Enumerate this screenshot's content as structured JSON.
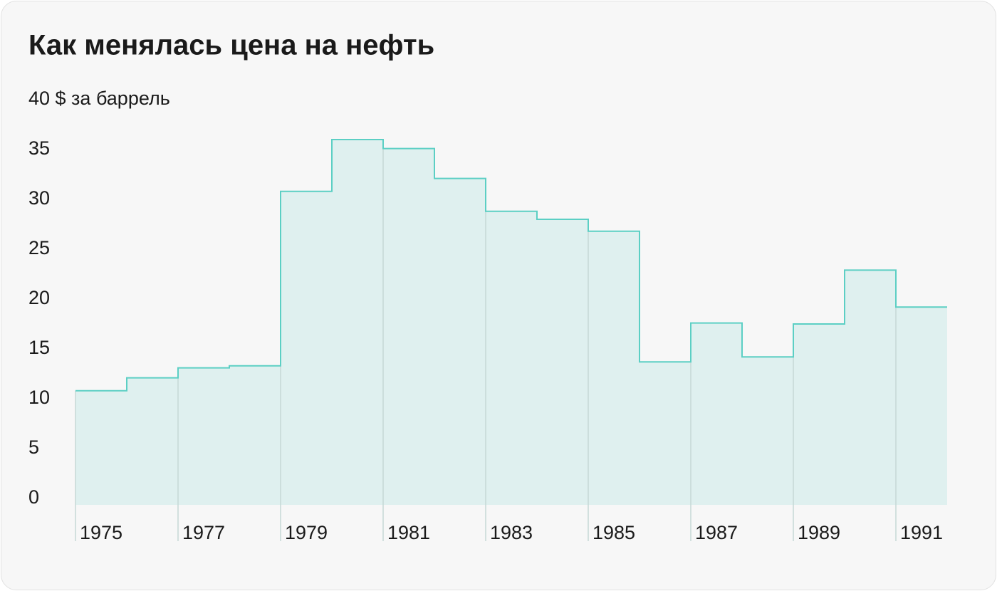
{
  "chart_data": {
    "type": "step",
    "title": "Как менялась цена на нефть",
    "categories": [
      "1975",
      null,
      "1977",
      null,
      "1979",
      null,
      "1981",
      null,
      "1983",
      null,
      "1985",
      null,
      "1987",
      null,
      "1989",
      null,
      "1991"
    ],
    "values": [
      10.8,
      12.1,
      13.1,
      13.3,
      30.8,
      36.0,
      35.1,
      32.1,
      28.8,
      28.0,
      26.8,
      13.7,
      17.6,
      14.2,
      17.5,
      22.9,
      19.2
    ],
    "color": "#5ccfc4",
    "fill_color": "#dff0ef",
    "ylim": [
      0,
      40
    ],
    "yticks": [
      0,
      5,
      10,
      15,
      20,
      25,
      30,
      35,
      {
        "value": 40,
        "label": "40 $ за баррель"
      }
    ],
    "grid": false
  }
}
